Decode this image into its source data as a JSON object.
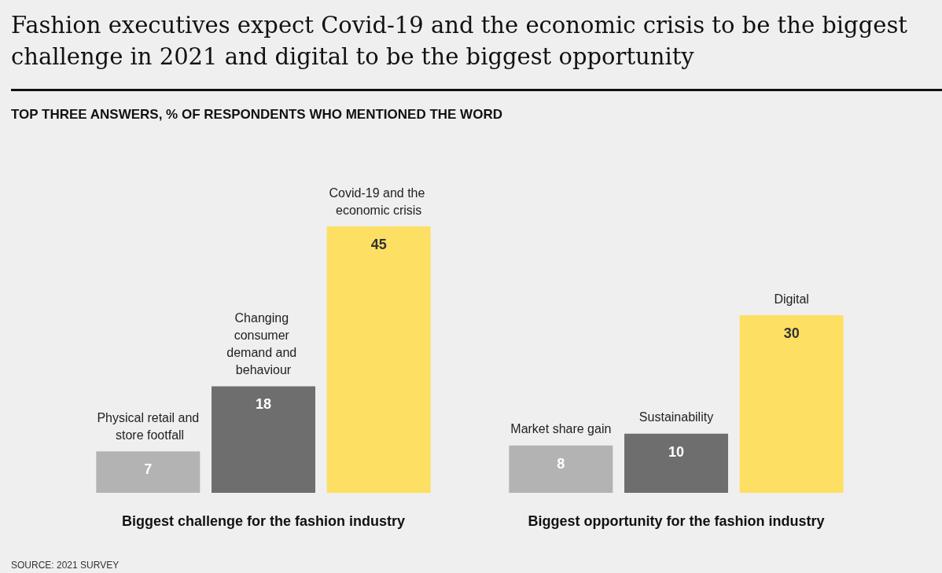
{
  "chart_data": [
    {
      "type": "bar",
      "title": "Fashion executives expect Covid-19 and the economic crisis to be the biggest challenge in 2021 and digital to be the biggest opportunity",
      "subtitle": "TOP THREE ANSWERS, % OF RESPONDENTS WHO MENTIONED THE WORD",
      "xlabel": "Biggest challenge for the fashion industry",
      "categories": [
        "Physical retail and store footfall",
        "Changing consumer demand and behaviour",
        "Covid-19 and the economic crisis"
      ],
      "values": [
        7,
        18,
        45
      ],
      "colors": [
        "#b3b3b3",
        "#6e6e6e",
        "#fddf63"
      ],
      "data_labels": true,
      "annotations": [
        "SOURCE: 2021 SURVEY"
      ]
    },
    {
      "type": "bar",
      "xlabel": "Biggest opportunity for the fashion industry",
      "categories": [
        "Market share gain",
        "Sustainability",
        "Digital"
      ],
      "values": [
        8,
        10,
        30
      ],
      "colors": [
        "#b3b3b3",
        "#6e6e6e",
        "#fddf63"
      ],
      "data_labels": true
    }
  ]
}
